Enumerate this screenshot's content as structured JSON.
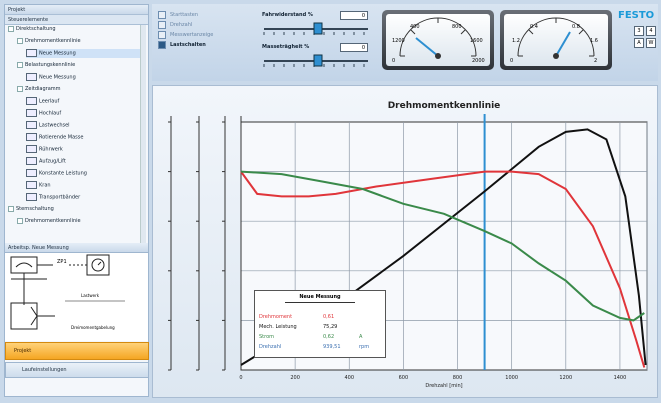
{
  "left_panel": {
    "header": "Projekt",
    "subheader": "Steuerelemente",
    "tree": [
      {
        "label": "Direktschaltung",
        "level": 0,
        "exp": true
      },
      {
        "label": "Drehmomentkennlinie",
        "level": 1,
        "exp": true
      },
      {
        "label": "Neue Messung",
        "level": 2,
        "icon": true,
        "sel": true
      },
      {
        "label": "Belastungskennlinie",
        "level": 1,
        "exp": true
      },
      {
        "label": "Neue Messung",
        "level": 2,
        "icon": true
      },
      {
        "label": "Zeitdiagramm",
        "level": 1,
        "exp": true
      },
      {
        "label": "Leerlauf",
        "level": 2,
        "icon": true
      },
      {
        "label": "Hochlauf",
        "level": 2,
        "icon": true
      },
      {
        "label": "Lastwechsel",
        "level": 2,
        "icon": true
      },
      {
        "label": "Rotierende Masse",
        "level": 2,
        "icon": true
      },
      {
        "label": "Rührwerk",
        "level": 2,
        "icon": true
      },
      {
        "label": "Aufzug/Lift",
        "level": 2,
        "icon": true
      },
      {
        "label": "Konstante Leistung",
        "level": 2,
        "icon": true
      },
      {
        "label": "Kran",
        "level": 2,
        "icon": true
      },
      {
        "label": "Transportbänder",
        "level": 2,
        "icon": true
      },
      {
        "label": "Sternschaltung",
        "level": 0,
        "exp": true
      },
      {
        "label": "Drehmomentkennlinie",
        "level": 1,
        "exp": true
      }
    ],
    "diagram_header": "Arbeitsp. Neue Messung",
    "diagram_labels": {
      "block": "ZP1",
      "load": "Lastwerk",
      "mech": "Dreimomentgabelung"
    },
    "btn_primary": "Projekt",
    "btn_secondary": "Laufeinstellungen"
  },
  "controls": {
    "checks": [
      "Starttasten",
      "Drehzahl",
      "Messwertanzeige"
    ],
    "load_button": "Lastschalten",
    "slider1_label": "Fahrwiderstand %",
    "slider1_value": "0",
    "slider2_label": "Masseträgheit %",
    "slider2_value": "0",
    "brand": "FESTO",
    "mini_buttons": [
      "3",
      "4",
      "A",
      "W"
    ],
    "gauge1_ticks": [
      "400",
      "800",
      "1200",
      "1600",
      "0",
      "2000"
    ],
    "gauge2_ticks": [
      "0.4",
      "0.8",
      "1.2",
      "1.6",
      "0",
      "2"
    ]
  },
  "chart_data": {
    "type": "line",
    "title": "Drehmomentkennlinie",
    "xlabel": "Drehzahl [min]",
    "x_ticks": [
      "0",
      "200",
      "400",
      "600",
      "800",
      "1000",
      "1200",
      "1400"
    ],
    "xlim": [
      0,
      1500
    ],
    "ylim": [
      0,
      1
    ],
    "cursor_x": 900,
    "series": [
      {
        "name": "black",
        "color": "#111111",
        "points": [
          [
            0,
            0.02
          ],
          [
            300,
            0.22
          ],
          [
            600,
            0.46
          ],
          [
            900,
            0.72
          ],
          [
            1100,
            0.9
          ],
          [
            1200,
            0.96
          ],
          [
            1280,
            0.97
          ],
          [
            1350,
            0.93
          ],
          [
            1420,
            0.7
          ],
          [
            1470,
            0.3
          ],
          [
            1495,
            0.02
          ]
        ]
      },
      {
        "name": "red",
        "color": "#e0353a",
        "points": [
          [
            0,
            0.8
          ],
          [
            60,
            0.71
          ],
          [
            150,
            0.7
          ],
          [
            250,
            0.7
          ],
          [
            350,
            0.71
          ],
          [
            500,
            0.74
          ],
          [
            700,
            0.77
          ],
          [
            900,
            0.8
          ],
          [
            1000,
            0.8
          ],
          [
            1100,
            0.79
          ],
          [
            1200,
            0.73
          ],
          [
            1300,
            0.58
          ],
          [
            1400,
            0.33
          ],
          [
            1460,
            0.12
          ],
          [
            1490,
            0.01
          ]
        ]
      },
      {
        "name": "green",
        "color": "#3a8a4a",
        "points": [
          [
            0,
            0.8
          ],
          [
            150,
            0.79
          ],
          [
            300,
            0.76
          ],
          [
            450,
            0.73
          ],
          [
            600,
            0.67
          ],
          [
            750,
            0.63
          ],
          [
            900,
            0.56
          ],
          [
            1000,
            0.51
          ],
          [
            1100,
            0.43
          ],
          [
            1200,
            0.36
          ],
          [
            1300,
            0.26
          ],
          [
            1400,
            0.21
          ],
          [
            1450,
            0.2
          ],
          [
            1490,
            0.23
          ]
        ]
      }
    ],
    "legend": {
      "title": "Neue Messung",
      "rows": [
        {
          "label": "Drehmoment",
          "value": "0,61",
          "unit": "",
          "color": "#e0353a"
        },
        {
          "label": "Mech. Leistung",
          "value": "75,29",
          "unit": "",
          "color": "#111111"
        },
        {
          "label": "Strom",
          "value": "0,62",
          "unit": "A",
          "color": "#3a8a4a"
        },
        {
          "label": "Drehzahl",
          "value": "939,51",
          "unit": "rpm",
          "color": "#3a6fb0"
        }
      ]
    }
  }
}
